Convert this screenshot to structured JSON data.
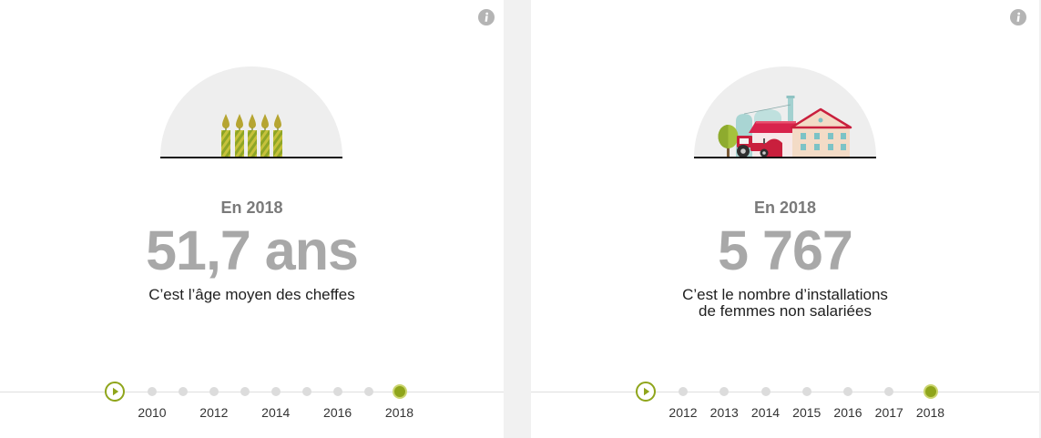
{
  "cards": [
    {
      "illustration_icon": "candles-illustration",
      "info_icon": "info-icon",
      "year_label": "En 2018",
      "value": "51,7 ans",
      "description": [
        "C’est l’âge moyen des cheffes"
      ],
      "timeline": {
        "play_icon": "play-icon",
        "points": [
          {
            "label": "2010"
          },
          {
            "label": ""
          },
          {
            "label": "2012"
          },
          {
            "label": ""
          },
          {
            "label": "2014"
          },
          {
            "label": ""
          },
          {
            "label": "2016"
          },
          {
            "label": ""
          },
          {
            "label": "2018",
            "active": true
          }
        ]
      }
    },
    {
      "illustration_icon": "farm-illustration",
      "info_icon": "info-icon",
      "year_label": "En 2018",
      "value": "5 767",
      "description": [
        "C’est le nombre d’installations",
        "de femmes non salariées"
      ],
      "timeline": {
        "play_icon": "play-icon",
        "points": [
          {
            "label": "2012"
          },
          {
            "label": "2013"
          },
          {
            "label": "2014"
          },
          {
            "label": "2015"
          },
          {
            "label": "2016"
          },
          {
            "label": "2017"
          },
          {
            "label": "2018",
            "active": true
          }
        ]
      }
    }
  ],
  "colors": {
    "accent": "#8fa51b",
    "active_ring": "#cbd56f",
    "value": "#a8a8a8",
    "year_label": "#7a7a7a",
    "inactive_dot": "#dcdcdc",
    "info_icon": "#b4b4b4"
  }
}
